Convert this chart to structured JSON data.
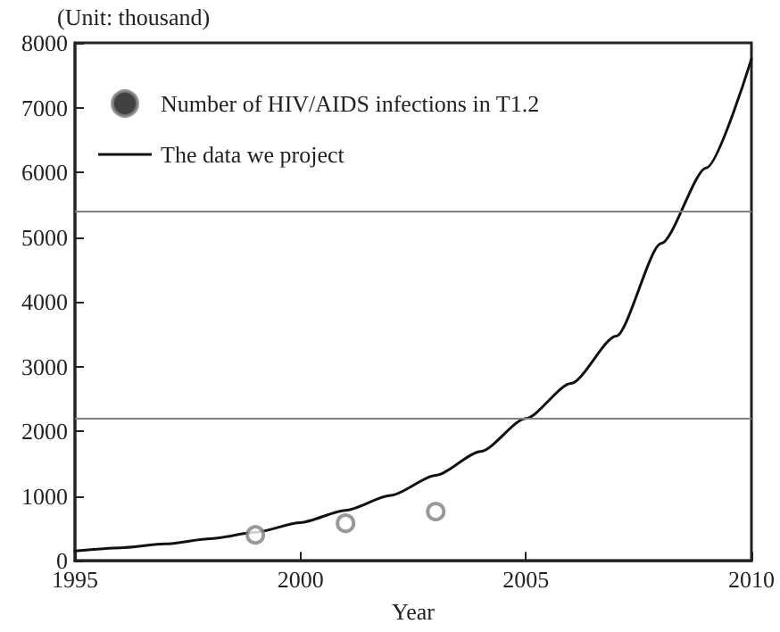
{
  "chart_data": {
    "type": "line",
    "xlabel": "Year",
    "ylabel": "(Unit: thousand)",
    "xlim": [
      1995,
      2010
    ],
    "xticks": [
      1995,
      2000,
      2005,
      2010
    ],
    "ylim": [
      0,
      8000
    ],
    "yticks": [
      0,
      1000,
      2000,
      3000,
      4000,
      5000,
      6000,
      7000,
      8000
    ],
    "series": [
      {
        "name": "Number of HIV/AIDS infections in T1.2",
        "type": "scatter",
        "color": "#808080",
        "marker": "circle",
        "x": [
          1999,
          2001,
          2003
        ],
        "values": [
          400,
          580,
          760
        ]
      },
      {
        "name": "The data we project",
        "color": "#111111",
        "marker": "none",
        "line_style": "solid",
        "x": [
          1995,
          1996,
          1997,
          1998,
          1999,
          2000,
          2001,
          2002,
          2003,
          2004,
          2005,
          2006,
          2007,
          2008,
          2009,
          2010
        ],
        "values": [
          150,
          200,
          260,
          340,
          440,
          590,
          780,
          1010,
          1320,
          1690,
          2200,
          2740,
          3470,
          4900,
          6070,
          7750
        ]
      }
    ],
    "ref_lines": [
      {
        "axis": "y",
        "value": 5400,
        "color": "#808080"
      },
      {
        "axis": "y",
        "value": 2200,
        "color": "#808080"
      }
    ],
    "grid": false,
    "legend": "top left"
  }
}
